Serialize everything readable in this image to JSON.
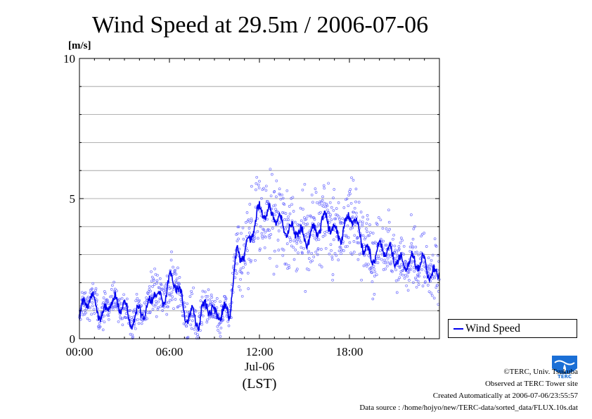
{
  "chart_data": {
    "type": "scatter",
    "title": "Wind Speed at 29.5m / 2006-07-06",
    "ylabel": "[m/s]",
    "xlabel": "(LST)",
    "date_label": "Jul-06",
    "ylim": [
      0,
      10
    ],
    "y_ticks": [
      "0",
      "5",
      "10"
    ],
    "xlim": [
      "2006-07-06 00:00",
      "2006-07-07 00:00"
    ],
    "x_ticks": [
      "00:00",
      "06:00",
      "12:00",
      "18:00"
    ],
    "grid": true,
    "legend_position": "right",
    "series": [
      {
        "name": "Wind Speed",
        "style": "10-s samples as open circles with a moving-average line",
        "color": "#0000ee",
        "scatter_color": "#7070ff",
        "x": [
          "00:00",
          "00:30",
          "01:00",
          "01:30",
          "02:00",
          "02:30",
          "03:00",
          "03:30",
          "04:00",
          "04:30",
          "05:00",
          "05:30",
          "06:00",
          "06:30",
          "07:00",
          "07:30",
          "08:00",
          "08:30",
          "09:00",
          "09:30",
          "10:00",
          "10:30",
          "11:00",
          "11:30",
          "12:00",
          "12:30",
          "13:00",
          "13:30",
          "14:00",
          "14:30",
          "15:00",
          "15:30",
          "16:00",
          "16:30",
          "17:00",
          "17:30",
          "18:00",
          "18:30",
          "19:00",
          "19:30",
          "20:00",
          "20:30",
          "21:00",
          "21:30",
          "22:00",
          "22:30",
          "23:00",
          "23:30"
        ],
        "y": [
          0.8,
          1.2,
          1.4,
          0.9,
          1.3,
          1.0,
          1.2,
          0.8,
          1.0,
          0.7,
          1.8,
          1.5,
          2.1,
          1.8,
          0.9,
          1.0,
          0.6,
          1.1,
          0.8,
          1.2,
          0.9,
          2.8,
          3.0,
          4.0,
          4.6,
          4.2,
          4.5,
          4.3,
          3.8,
          3.7,
          3.6,
          4.0,
          3.9,
          4.1,
          3.8,
          3.9,
          4.4,
          3.8,
          3.3,
          3.1,
          3.2,
          3.0,
          3.0,
          2.9,
          2.7,
          2.5,
          2.8,
          2.4
        ],
        "spread": [
          0.4,
          0.5,
          0.5,
          0.4,
          0.5,
          0.4,
          0.5,
          0.4,
          0.4,
          0.4,
          0.7,
          0.6,
          0.8,
          0.6,
          0.4,
          0.5,
          0.4,
          0.5,
          0.4,
          0.5,
          0.4,
          0.8,
          1.0,
          1.1,
          1.1,
          1.0,
          1.0,
          1.0,
          0.9,
          1.0,
          1.0,
          1.0,
          0.9,
          1.0,
          0.9,
          0.9,
          1.0,
          0.9,
          0.8,
          0.8,
          0.8,
          0.8,
          0.7,
          0.7,
          0.7,
          0.7,
          0.7,
          0.7
        ]
      }
    ]
  },
  "credits": {
    "copyright": "©TERC, Univ. Tsukuba",
    "observed": "Observed at TERC Tower site",
    "created": "Created Automatically at 2006-07-06/23:55:57",
    "source": "Data source : /home/hojyo/new/TERC-data/sorted_data/FLUX.10s.dat"
  },
  "logo": {
    "text": "TERC",
    "color": "#1a6fd6"
  }
}
